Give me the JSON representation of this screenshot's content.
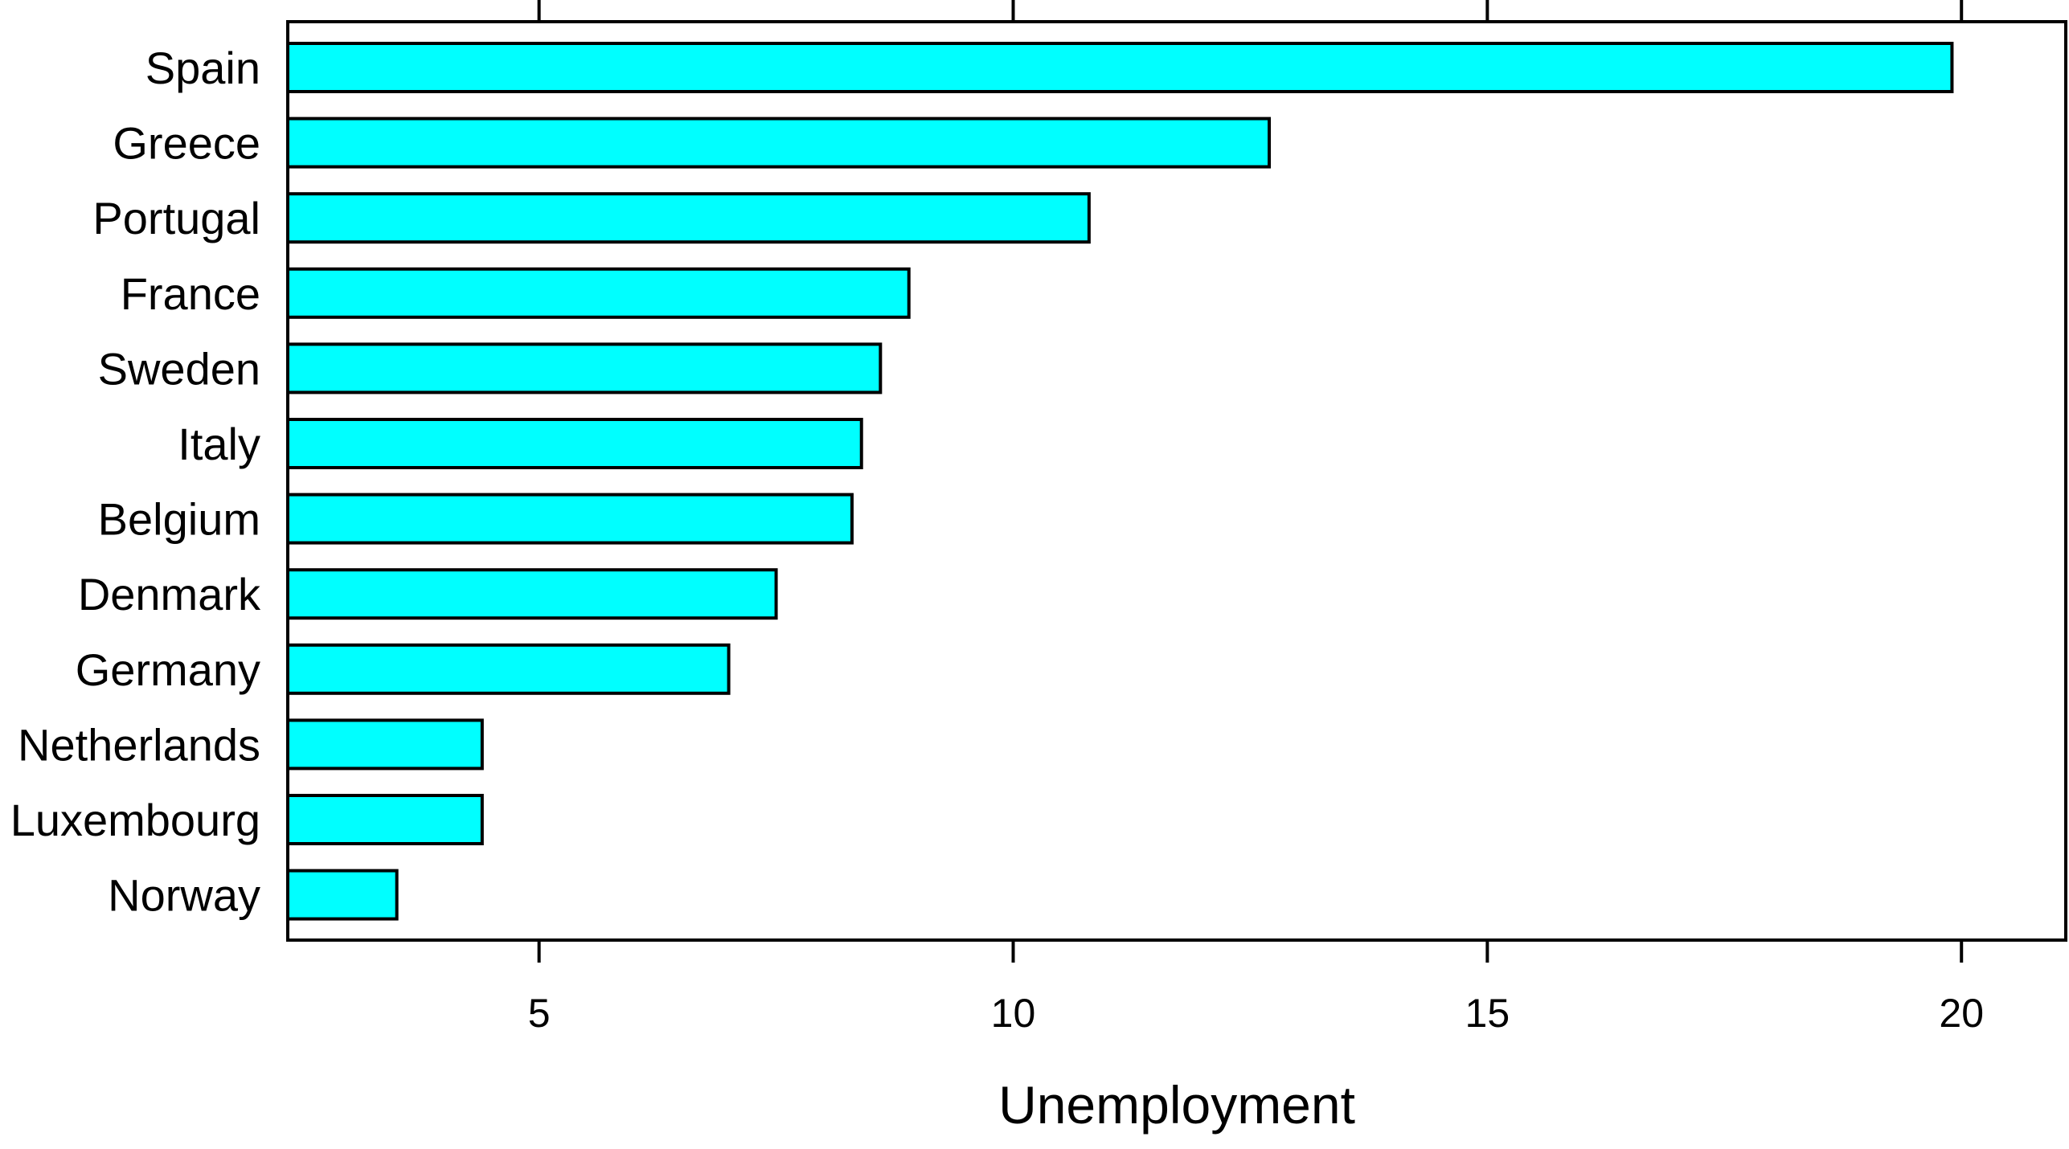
{
  "chart_data": {
    "type": "bar",
    "orientation": "horizontal",
    "categories": [
      "Spain",
      "Greece",
      "Portugal",
      "France",
      "Sweden",
      "Italy",
      "Belgium",
      "Denmark",
      "Germany",
      "Netherlands",
      "Luxembourg",
      "Norway"
    ],
    "values": [
      19.9,
      12.7,
      10.8,
      8.9,
      8.6,
      8.4,
      8.3,
      7.5,
      7.0,
      4.4,
      4.4,
      3.5
    ],
    "xlabel": "Unemployment",
    "ylabel": "",
    "xlim": [
      2.35,
      21.1
    ],
    "xticks": [
      5,
      10,
      15,
      20
    ],
    "xtick_labels": [
      "5",
      "10",
      "15",
      "20"
    ],
    "grid": false,
    "bar_color": "#00FFFF",
    "bar_edge_color": "#000000"
  }
}
